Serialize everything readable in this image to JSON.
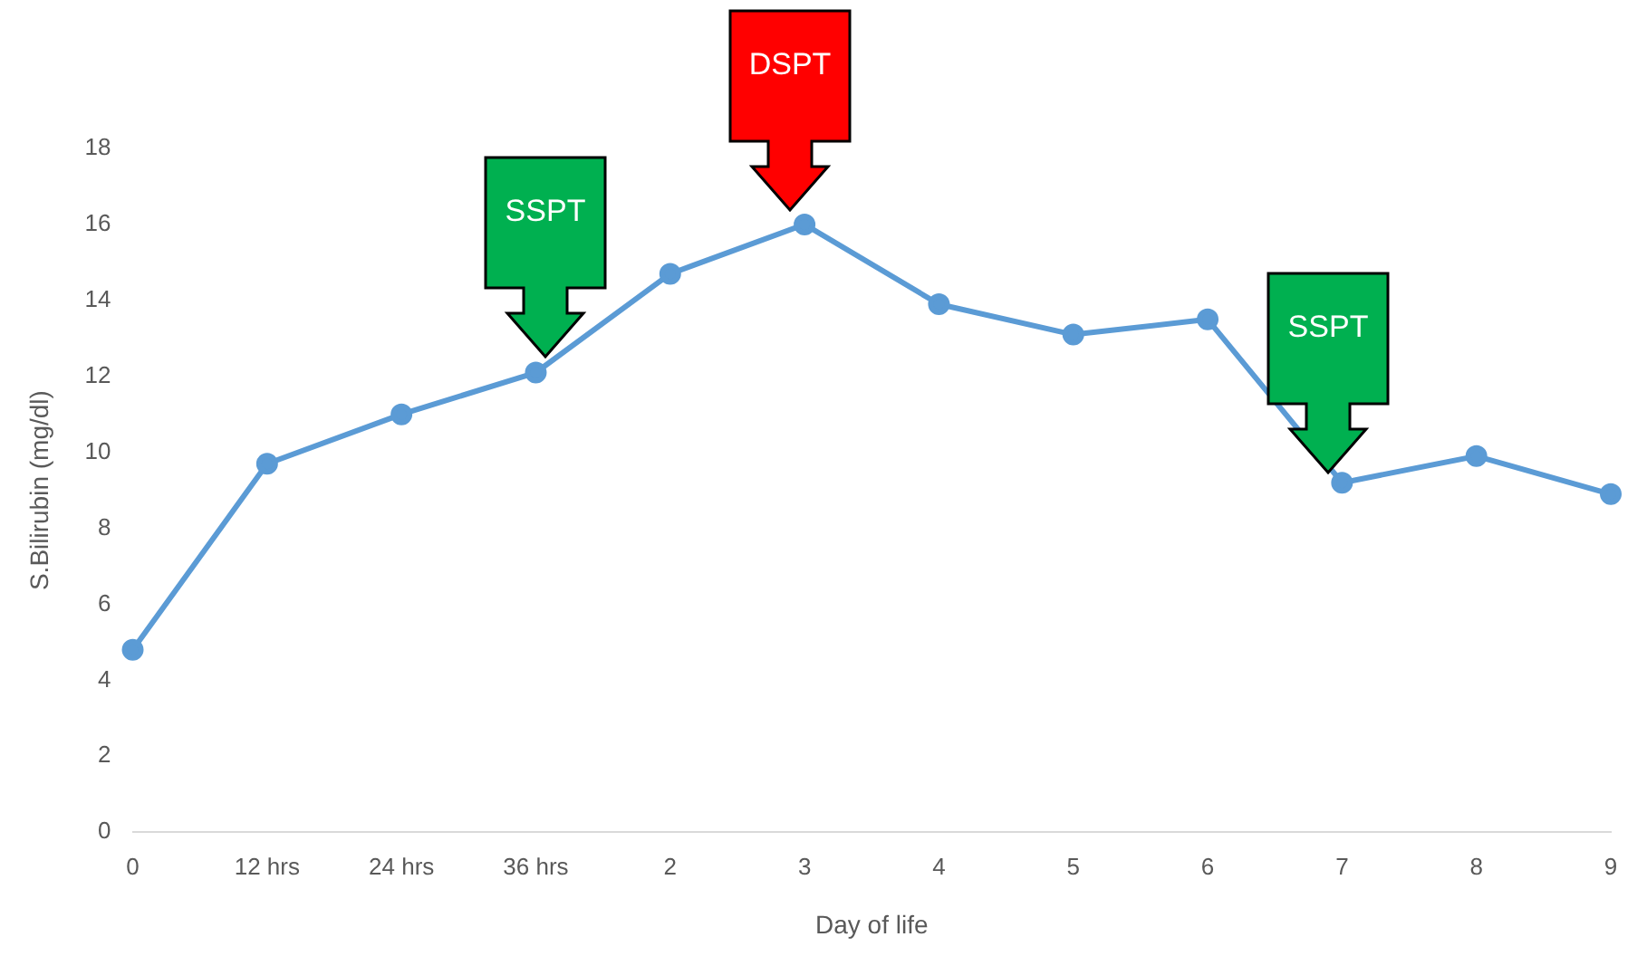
{
  "chart_data": {
    "type": "line",
    "xlabel": "Day of life",
    "ylabel": "S.Bilirubin (mg/dl)",
    "categories": [
      "0",
      "12 hrs",
      "24 hrs",
      "36 hrs",
      "2",
      "3",
      "4",
      "5",
      "6",
      "7",
      "8",
      "9"
    ],
    "series": [
      {
        "color": "#5b9bd5",
        "values": [
          4.8,
          9.7,
          11.0,
          12.1,
          14.7,
          16.0,
          13.9,
          13.1,
          13.5,
          9.2,
          9.9,
          8.9
        ]
      }
    ],
    "ylim": [
      0,
      18
    ],
    "yticks": [
      0,
      2,
      4,
      6,
      8,
      10,
      12,
      14,
      16,
      18
    ],
    "grid": false,
    "legend": false,
    "marker": "circle",
    "line_style": "solid",
    "annotations": [
      "SSPT",
      "DSPT",
      "SSPT"
    ]
  }
}
